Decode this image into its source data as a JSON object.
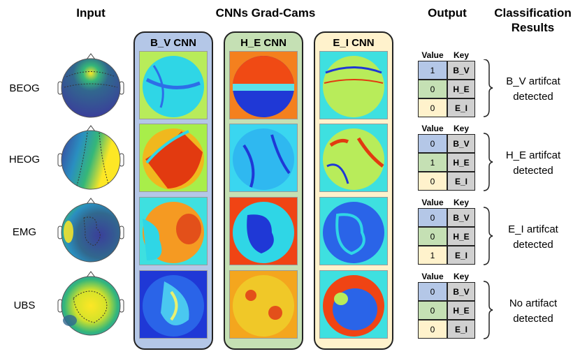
{
  "headers": {
    "input": "Input",
    "gradcams": "CNNs Grad-Cams",
    "output": "Output",
    "classification": "Classification Results"
  },
  "rows": [
    {
      "label": "BEOG",
      "result": "B_V artifcat detected",
      "values": [
        "1",
        "0",
        "0"
      ]
    },
    {
      "label": "HEOG",
      "result": "H_E artifcat detected",
      "values": [
        "0",
        "1",
        "0"
      ]
    },
    {
      "label": "EMG",
      "result": "E_I artifcat detected",
      "values": [
        "0",
        "0",
        "1"
      ]
    },
    {
      "label": "UBS",
      "result": "No artifact detected",
      "values": [
        "0",
        "0",
        "0"
      ]
    }
  ],
  "cnn_panels": [
    {
      "title": "B_V CNN",
      "color": "#b4c7e7"
    },
    {
      "title": "H_E CNN",
      "color": "#c5e0b4"
    },
    {
      "title": "E_I CNN",
      "color": "#fff2cc"
    }
  ],
  "output_table": {
    "value_header": "Value",
    "key_header": "Key",
    "keys": [
      "B_V",
      "H_E",
      "E_I"
    ],
    "key_colors": [
      "#b4c7e7",
      "#c5e0b4",
      "#fff2cc"
    ]
  }
}
